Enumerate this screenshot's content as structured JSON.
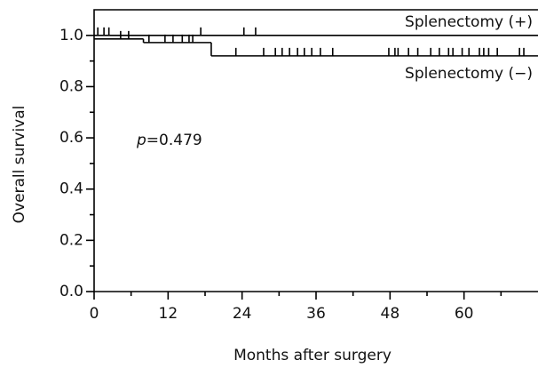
{
  "chart_data": {
    "type": "survival",
    "xlabel": "Months after surgery",
    "ylabel": "Overall survival",
    "annotation": [
      "p",
      "=0.479"
    ],
    "xlim": [
      0,
      72
    ],
    "ylim": [
      0,
      1.1
    ],
    "xticks": [
      0,
      12,
      24,
      36,
      48,
      60
    ],
    "xminorticks": [
      6,
      18,
      30,
      42,
      54,
      66
    ],
    "yticks": [
      {
        "value": 0,
        "label": "0.0"
      },
      {
        "value": 0.2,
        "label": "0.2"
      },
      {
        "value": 0.4,
        "label": "0.4"
      },
      {
        "value": 0.6,
        "label": "0.6"
      },
      {
        "value": 0.8,
        "label": "0.8"
      },
      {
        "value": 1,
        "label": "1.0"
      }
    ],
    "yminorticks": [
      0.1,
      0.3,
      0.5,
      0.7,
      0.9
    ],
    "series": [
      {
        "name": "Splenectomy (+)",
        "color": "#000000",
        "x": [
          0
        ],
        "values": [
          1.0
        ],
        "censored": [
          0.6,
          1.6,
          2.4,
          17.3,
          24.3,
          26.2
        ]
      },
      {
        "name": "Splenectomy (−)",
        "color": "#000000",
        "x": [
          0,
          8,
          19
        ],
        "values": [
          0.986,
          0.972,
          0.92
        ],
        "censored": [
          4.3,
          5.6,
          8.9,
          11.5,
          12.8,
          14.3,
          15.4,
          16.0,
          23,
          27.5,
          29.4,
          30.5,
          31.7,
          33,
          34.1,
          35.3,
          36.7,
          38.7,
          47.8,
          48.8,
          49.3,
          51,
          52.5,
          54.6,
          56,
          57.5,
          58.2,
          59.7,
          60.8,
          62.5,
          63.2,
          64,
          65.4,
          69,
          69.7
        ]
      }
    ]
  }
}
